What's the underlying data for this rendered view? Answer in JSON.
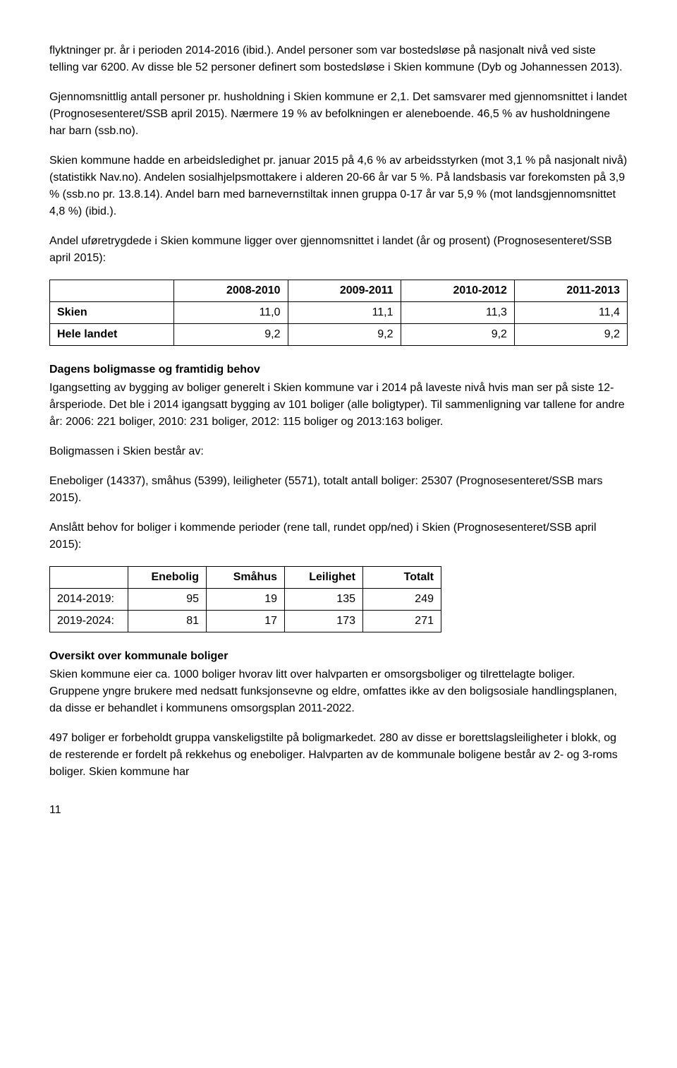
{
  "para1": "flyktninger pr. år i perioden 2014-2016 (ibid.). Andel personer som var bostedsløse på nasjonalt nivå ved siste telling var 6200. Av disse ble 52 personer definert som bostedsløse i Skien kommune (Dyb og Johannessen 2013).",
  "para2": "Gjennomsnittlig antall personer pr. husholdning i Skien kommune er 2,1. Det samsvarer med gjennomsnittet i landet (Prognosesenteret/SSB april 2015). Nærmere 19 % av befolkningen er aleneboende. 46,5 % av husholdningene har barn (ssb.no).",
  "para3": "Skien kommune hadde en arbeidsledighet pr. januar 2015 på 4,6 % av arbeidsstyrken (mot 3,1 % på nasjonalt nivå) (statistikk Nav.no). Andelen sosialhjelpsmottakere i alderen 20-66 år var 5 %. På landsbasis var forekomsten på 3,9 % (ssb.no pr. 13.8.14). Andel barn med barnevernstiltak innen gruppa 0-17 år var 5,9 % (mot landsgjennomsnittet 4,8 %) (ibid.).",
  "para4": "Andel uføretrygdede i Skien kommune ligger over gjennomsnittet i landet (år og prosent) (Prognosesenteret/SSB april 2015):",
  "table1": {
    "headers": [
      "",
      "2008-2010",
      "2009-2011",
      "2010-2012",
      "2011-2013"
    ],
    "rows": [
      [
        "Skien",
        "11,0",
        "11,1",
        "11,3",
        "11,4"
      ],
      [
        "Hele landet",
        "9,2",
        "9,2",
        "9,2",
        "9,2"
      ]
    ]
  },
  "heading1": "Dagens boligmasse og framtidig behov",
  "para5": "Igangsetting av bygging av boliger generelt i Skien kommune var i 2014 på laveste nivå hvis man ser på siste 12-årsperiode. Det ble i 2014 igangsatt bygging av 101 boliger (alle boligtyper). Til sammenligning var tallene for andre år: 2006: 221 boliger, 2010: 231 boliger, 2012: 115 boliger og 2013:163 boliger.",
  "para6": "Boligmassen i Skien består av:",
  "para7": "Eneboliger (14337), småhus (5399), leiligheter (5571), totalt antall boliger: 25307 (Prognosesenteret/SSB mars 2015).",
  "para8": "Anslått behov for boliger i kommende perioder (rene tall, rundet opp/ned) i Skien (Prognosesenteret/SSB april 2015):",
  "table2": {
    "headers": [
      "",
      "Enebolig",
      "Småhus",
      "Leilighet",
      "Totalt"
    ],
    "rows": [
      [
        "2014-2019:",
        "95",
        "19",
        "135",
        "249"
      ],
      [
        "2019-2024:",
        "81",
        "17",
        "173",
        "271"
      ]
    ]
  },
  "heading2": "Oversikt over kommunale boliger",
  "para9": "Skien kommune eier ca. 1000 boliger hvorav litt over halvparten er omsorgsboliger og tilrettelagte boliger. Gruppene yngre brukere med nedsatt funksjonsevne og eldre, omfattes ikke av den boligsosiale handlingsplanen, da disse er behandlet i kommunens omsorgsplan 2011-2022.",
  "para10": "497 boliger er forbeholdt gruppa vanskeligstilte på boligmarkedet. 280 av disse er borettslagsleiligheter i blokk, og de resterende er fordelt på rekkehus og eneboliger. Halvparten av de kommunale boligene består av 2- og 3-roms boliger. Skien kommune har",
  "pagenum": "11"
}
